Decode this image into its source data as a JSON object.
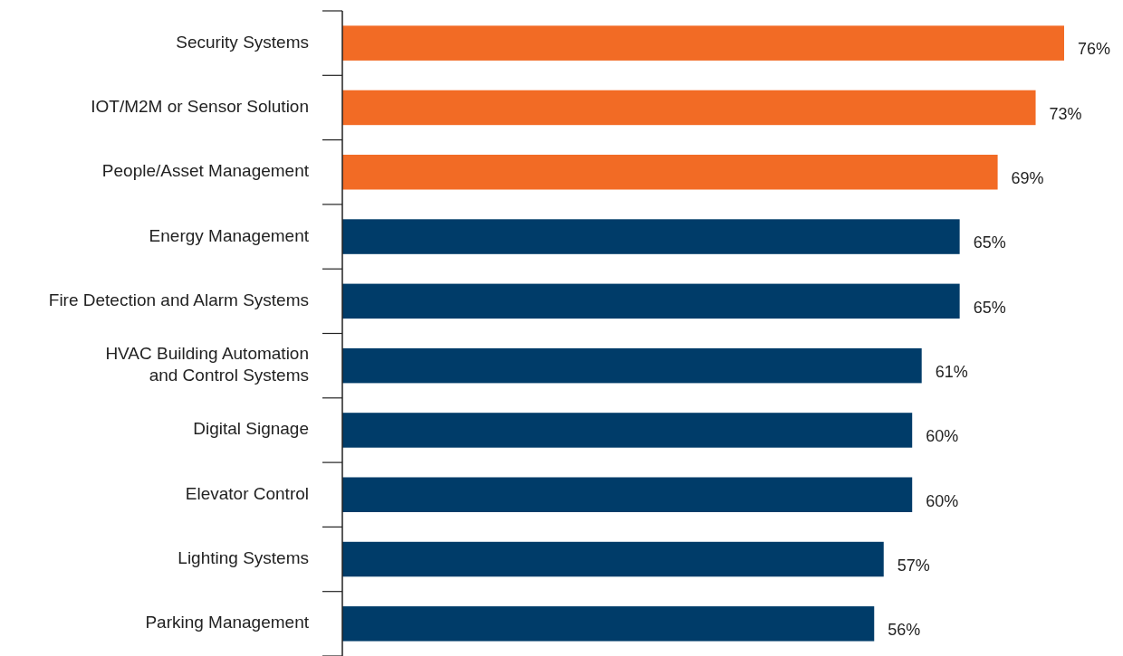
{
  "chart_data": {
    "type": "bar",
    "orientation": "horizontal",
    "categories": [
      "Security Systems",
      "IOT/M2M or Sensor Solution",
      "People/Asset Management",
      "Energy Management",
      "Fire Detection and Alarm Systems",
      "HVAC Building Automation and Control Systems",
      "Digital Signage",
      "Elevator Control",
      "Lighting Systems",
      "Parking Management"
    ],
    "values": [
      76,
      73,
      69,
      65,
      65,
      61,
      60,
      60,
      57,
      56
    ],
    "colors": [
      "#f26b25",
      "#f26b25",
      "#f26b25",
      "#003c69",
      "#003c69",
      "#003c69",
      "#003c69",
      "#003c69",
      "#003c69",
      "#003c69"
    ],
    "value_labels": [
      "76%",
      "73%",
      "69%",
      "65%",
      "65%",
      "61%",
      "60%",
      "60%",
      "57%",
      "56%"
    ]
  }
}
